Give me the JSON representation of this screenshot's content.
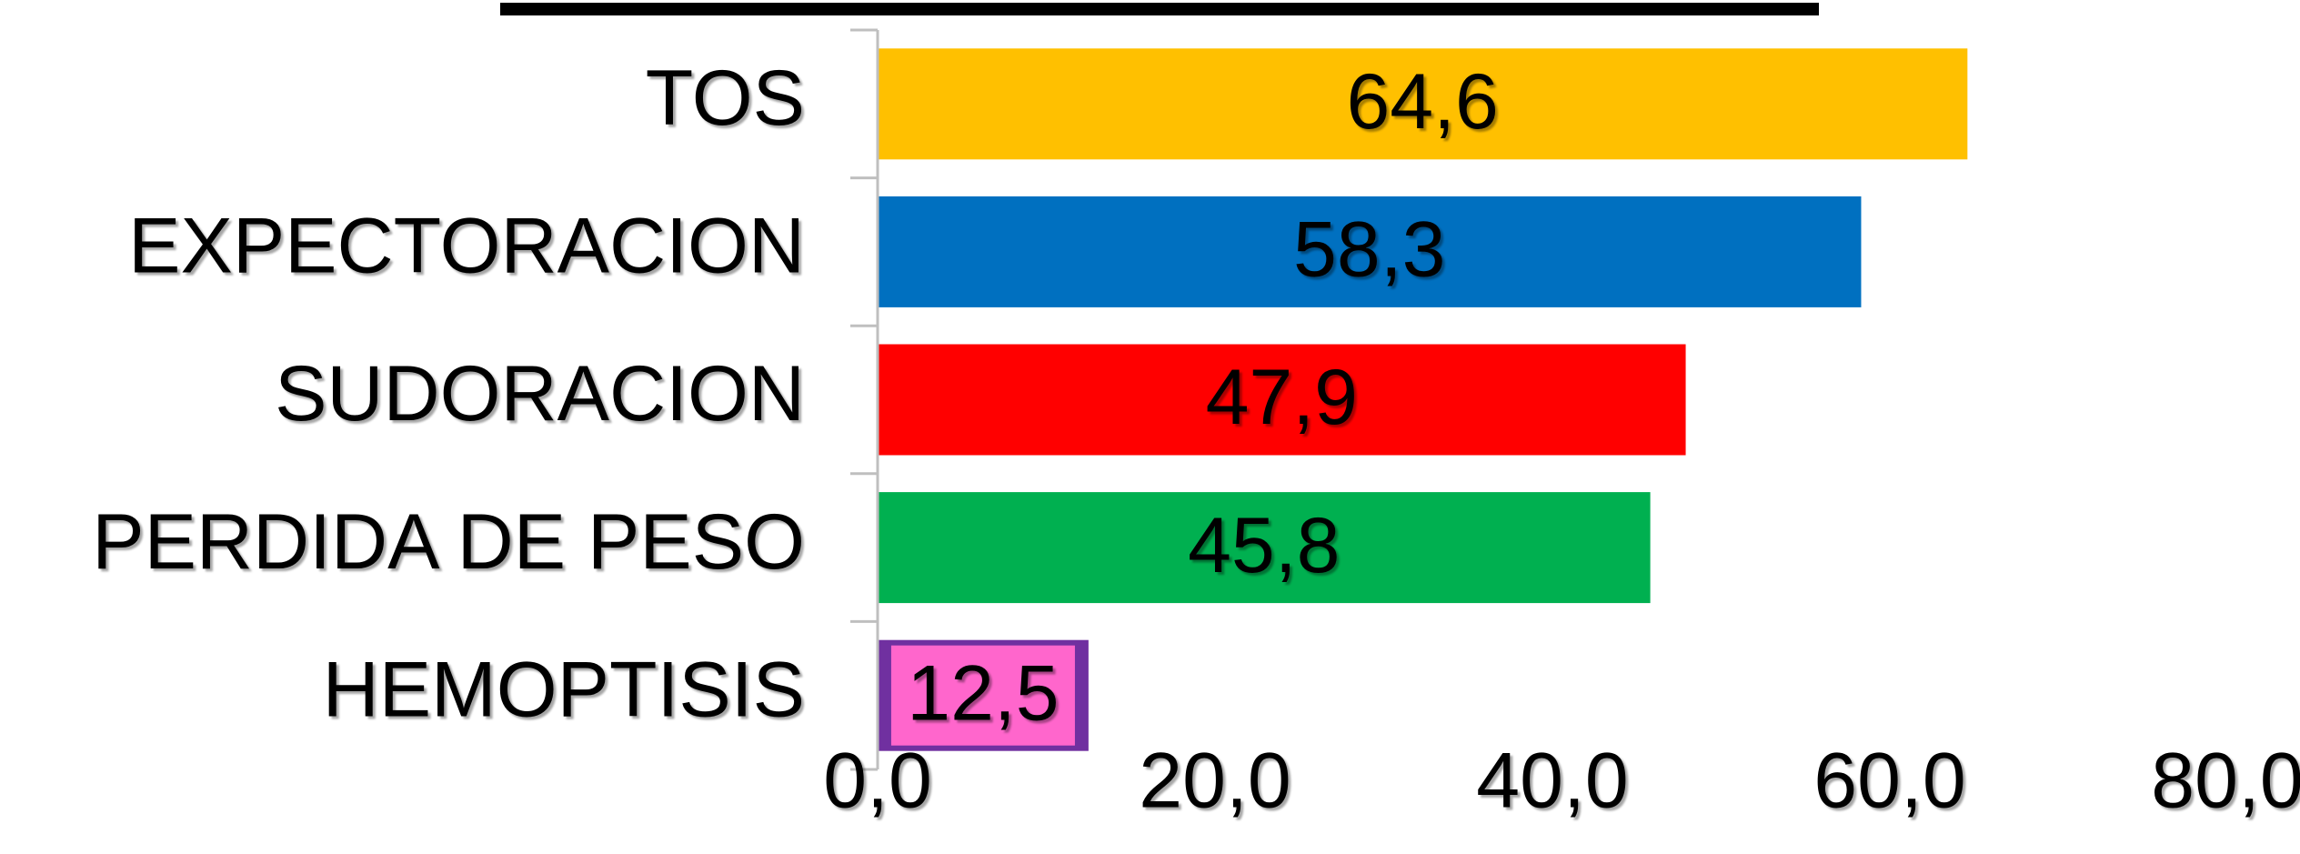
{
  "chart_data": {
    "type": "bar",
    "orientation": "horizontal",
    "title": "",
    "xlabel": "",
    "ylabel": "",
    "categories": [
      "TOS",
      "EXPECTORACION",
      "SUDORACION",
      "PERDIDA DE PESO",
      "HEMOPTISIS"
    ],
    "values": [
      64.6,
      58.3,
      47.9,
      45.8,
      12.5
    ],
    "value_labels": [
      "64,6",
      "58,3",
      "47,9",
      "45,8",
      "12,5"
    ],
    "colors": [
      "#FFC000",
      "#0070C0",
      "#FF0000",
      "#00B050",
      "#7030A0"
    ],
    "label_highlight_colors": [
      "#FFC000",
      "#0070C0",
      "#FF0000",
      "#00B050",
      "#FF66CC"
    ],
    "xlim": [
      0,
      80
    ],
    "x_ticks": [
      0,
      20,
      40,
      60,
      80
    ],
    "x_tick_labels": [
      "0,0",
      "20,0",
      "40,0",
      "60,0",
      "80,0"
    ],
    "grid": false,
    "legend": "none",
    "axis_color": "#BFBFBF",
    "top_rule_color": "#000000"
  }
}
